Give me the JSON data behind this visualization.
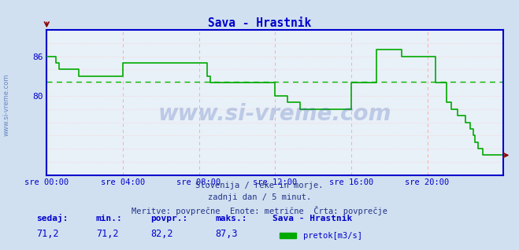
{
  "title": "Sava - Hrastnik",
  "bg_color": "#d0e0f0",
  "plot_bg_color": "#e8f0f8",
  "line_color": "#00aa00",
  "avg_line_color": "#00bb00",
  "avg_value": 82.2,
  "min_val": 71.2,
  "max_val": 87.3,
  "sedaj": 71.2,
  "povpr": 82.2,
  "maks": 87.3,
  "title_color": "#0000cc",
  "subtitle1": "Slovenija / reke in morje.",
  "subtitle2": "zadnji dan / 5 minut.",
  "subtitle3": "Meritve: povprečne  Enote: metrične  Črta: povprečje",
  "legend_station": "Sava - Hrastnik",
  "legend_label": "pretok[m3/s]",
  "xtick_labels": [
    "sre 00:00",
    "sre 04:00",
    "sre 08:00",
    "sre 12:00",
    "sre 16:00",
    "sre 20:00"
  ],
  "xtick_positions": [
    0,
    48,
    96,
    144,
    192,
    240
  ],
  "ylim_min": 68,
  "ylim_max": 90,
  "total_points": 288,
  "watermark": "www.si-vreme.com",
  "vgrid_color": "#ffaaaa",
  "hgrid_color": "#ffcccc",
  "spine_color": "#0000cc",
  "tick_color": "#0000cc",
  "flow_data": [
    86,
    86,
    86,
    86,
    86,
    86,
    85,
    85,
    84,
    84,
    84,
    84,
    84,
    84,
    84,
    84,
    84,
    84,
    84,
    84,
    83,
    83,
    83,
    83,
    83,
    83,
    83,
    83,
    83,
    83,
    83,
    83,
    83,
    83,
    83,
    83,
    83,
    83,
    83,
    83,
    83,
    83,
    83,
    83,
    83,
    83,
    83,
    83,
    85,
    85,
    85,
    85,
    85,
    85,
    85,
    85,
    85,
    85,
    85,
    85,
    85,
    85,
    85,
    85,
    85,
    85,
    85,
    85,
    85,
    85,
    85,
    85,
    85,
    85,
    85,
    85,
    85,
    85,
    85,
    85,
    85,
    85,
    85,
    85,
    85,
    85,
    85,
    85,
    85,
    85,
    85,
    85,
    85,
    85,
    85,
    85,
    85,
    85,
    85,
    85,
    85,
    83,
    83,
    82,
    82,
    82,
    82,
    82,
    82,
    82,
    82,
    82,
    82,
    82,
    82,
    82,
    82,
    82,
    82,
    82,
    82,
    82,
    82,
    82,
    82,
    82,
    82,
    82,
    82,
    82,
    82,
    82,
    82,
    82,
    82,
    82,
    82,
    82,
    82,
    82,
    82,
    82,
    82,
    82,
    80,
    80,
    80,
    80,
    80,
    80,
    80,
    80,
    79,
    79,
    79,
    79,
    79,
    79,
    79,
    79,
    78,
    78,
    78,
    78,
    78,
    78,
    78,
    78,
    78,
    78,
    78,
    78,
    78,
    78,
    78,
    78,
    78,
    78,
    78,
    78,
    78,
    78,
    78,
    78,
    78,
    78,
    78,
    78,
    78,
    78,
    78,
    78,
    82,
    82,
    82,
    82,
    82,
    82,
    82,
    82,
    82,
    82,
    82,
    82,
    82,
    82,
    82,
    82,
    87,
    87,
    87,
    87,
    87,
    87,
    87,
    87,
    87,
    87,
    87,
    87,
    87,
    87,
    87,
    87,
    86,
    86,
    86,
    86,
    86,
    86,
    86,
    86,
    86,
    86,
    86,
    86,
    86,
    86,
    86,
    86,
    86,
    86,
    86,
    86,
    86,
    82,
    82,
    82,
    82,
    82,
    82,
    82,
    79,
    79,
    79,
    78,
    78,
    78,
    78,
    77,
    77,
    77,
    77,
    77,
    76,
    76,
    76,
    75,
    75,
    74,
    73,
    73,
    72,
    72,
    72,
    71,
    71,
    71,
    71,
    71,
    71,
    71,
    71,
    71,
    71,
    71,
    71,
    71
  ]
}
